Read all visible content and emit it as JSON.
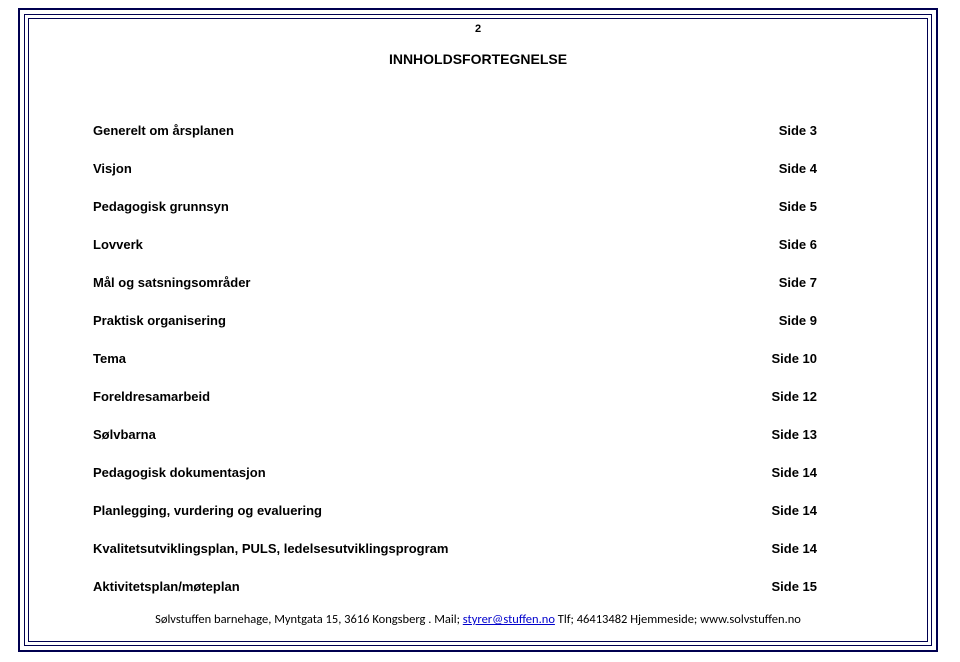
{
  "page_number": "2",
  "heading": "INNHOLDSFORTEGNELSE",
  "toc": [
    {
      "label": "Generelt om årsplanen",
      "page": "Side 3"
    },
    {
      "label": "Visjon",
      "page": "Side 4"
    },
    {
      "label": "Pedagogisk grunnsyn",
      "page": "Side 5"
    },
    {
      "label": "Lovverk",
      "page": "Side 6"
    },
    {
      "label": "Mål og satsningsområder",
      "page": "Side 7"
    },
    {
      "label": "Praktisk organisering",
      "page": "Side 9"
    },
    {
      "label": "Tema",
      "page": "Side 10"
    },
    {
      "label": "Foreldresamarbeid",
      "page": "Side 12"
    },
    {
      "label": "Sølvbarna",
      "page": "Side 13"
    },
    {
      "label": "Pedagogisk dokumentasjon",
      "page": "Side 14"
    },
    {
      "label": "Planlegging, vurdering og evaluering",
      "page": "Side 14"
    },
    {
      "label": "Kvalitetsutviklingsplan, PULS, ledelsesutviklingsprogram",
      "page": "Side 14"
    },
    {
      "label": "Aktivitetsplan/møteplan",
      "page": "Side 15"
    }
  ],
  "footer": {
    "part1": "Sølvstuffen barnehage, Myntgata 15, 3616 Kongsberg . Mail; ",
    "email": "styrer@stuffen.no",
    "part2": " Tlf; 46413482 Hjemmeside; www.solvstuffen.no"
  },
  "colors": {
    "border": "#000050",
    "text": "#000000",
    "link": "#0000cc",
    "background": "#ffffff"
  }
}
